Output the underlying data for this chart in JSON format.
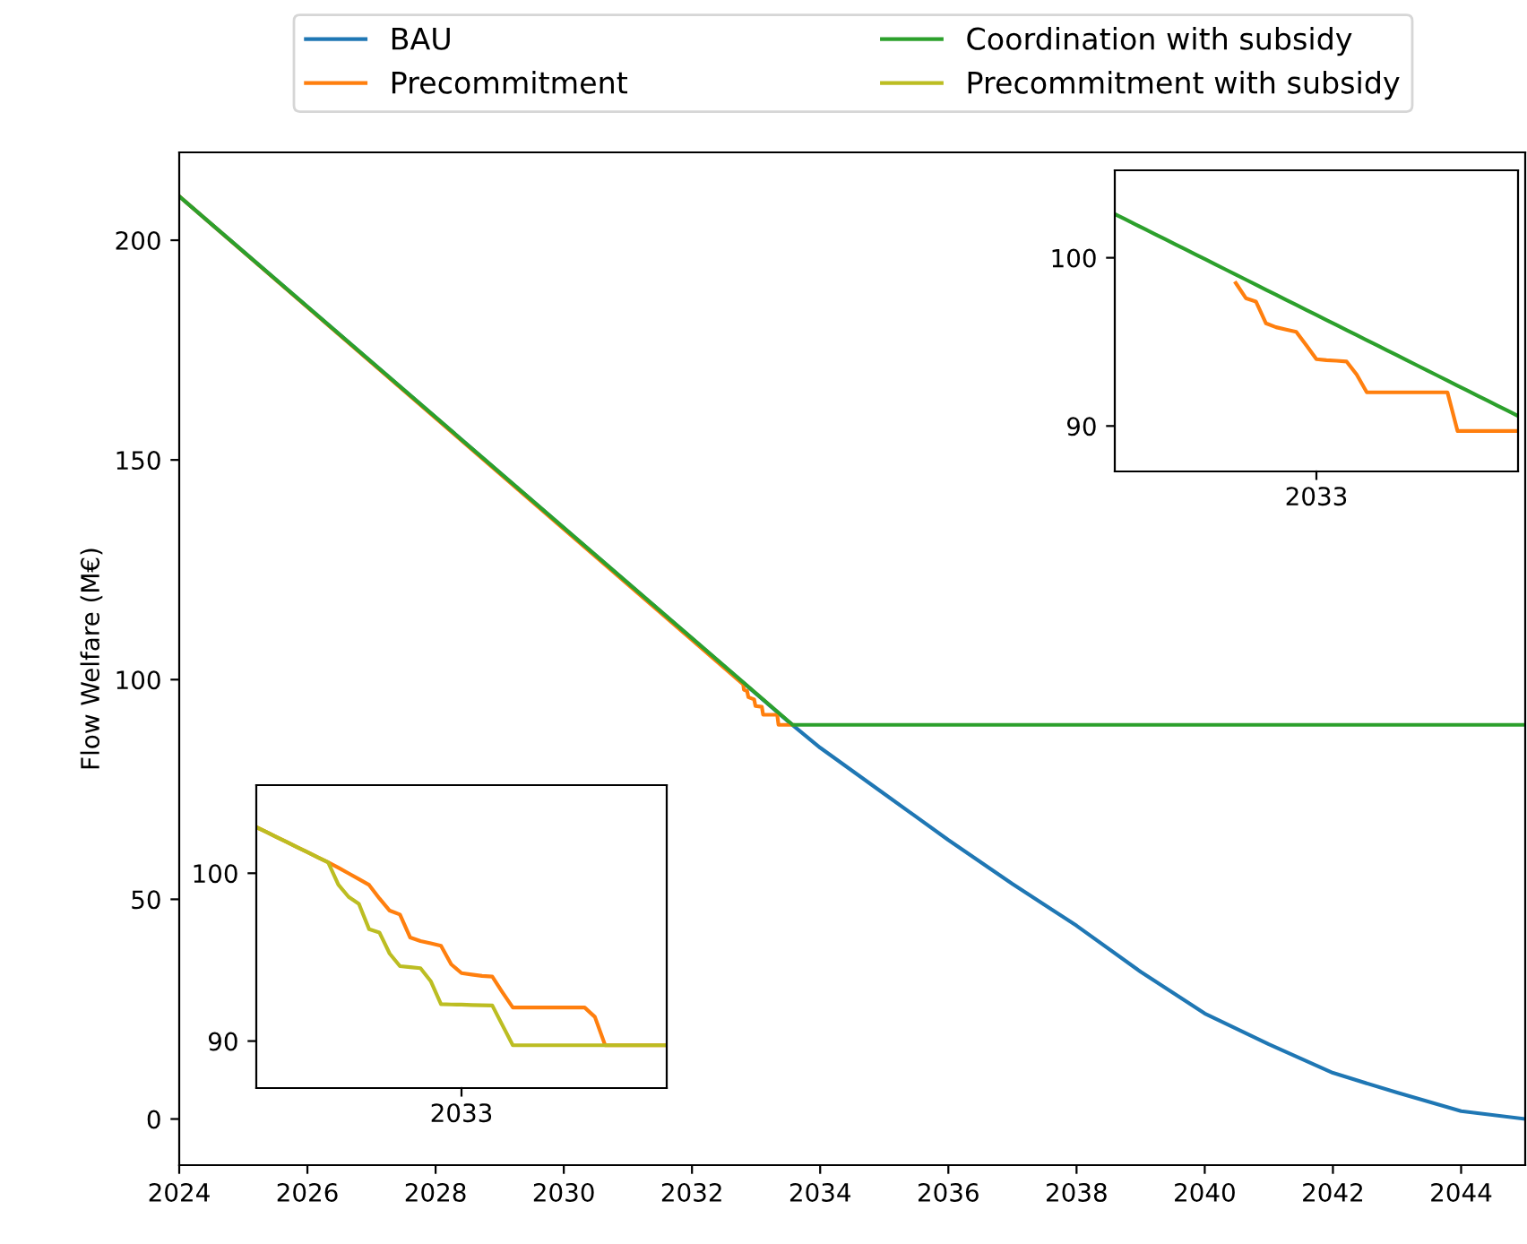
{
  "chart_data": [
    {
      "type": "line",
      "ylabel": "Flow Welfare (M€)",
      "xlim": [
        2024,
        2045
      ],
      "ylim": [
        -10.5,
        220
      ],
      "xticks": [
        2024,
        2026,
        2028,
        2030,
        2032,
        2034,
        2036,
        2038,
        2040,
        2042,
        2044
      ],
      "yticks": [
        0,
        50,
        100,
        150,
        200
      ],
      "grid": false,
      "legend": "top",
      "series": [
        {
          "name": "BAU",
          "color": "#1f77b4",
          "x": [
            2024,
            2033.5,
            2034,
            2035,
            2036,
            2037,
            2038,
            2039,
            2040,
            2041,
            2042,
            2043,
            2044,
            2045
          ],
          "values": [
            210,
            90.5,
            84.5,
            74,
            63.5,
            53.5,
            44,
            33.5,
            24,
            17,
            10.5,
            6,
            1.8,
            0
          ]
        },
        {
          "name": "Precommitment",
          "color": "#ff7f0e",
          "x": [
            2024,
            2032.8,
            2032.81,
            2032.86,
            2032.88,
            2032.97,
            2032.99,
            2033.09,
            2033.11,
            2033.33,
            2033.35,
            2033.57
          ],
          "values": [
            210,
            98.9,
            97.7,
            97.4,
            96.0,
            95.5,
            94.0,
            93.8,
            92.0,
            92.0,
            89.7,
            89.7
          ]
        },
        {
          "name": "Coordination with subsidy",
          "color": "#2ca02c",
          "x": [
            2024,
            2033.57,
            2045
          ],
          "values": [
            210,
            89.7,
            89.7
          ]
        }
      ]
    },
    {
      "type": "line",
      "ylim": [
        87.3,
        105.2
      ],
      "yticks": [
        90,
        100
      ],
      "grid": false,
      "annotations": [
        "2033"
      ],
      "categories": [
        null,
        null,
        null,
        null,
        null,
        null,
        null,
        null,
        null,
        null,
        null,
        null,
        null,
        null,
        null,
        null,
        null,
        null,
        null,
        null,
        null,
        null,
        null,
        null,
        null,
        null,
        null,
        null,
        null,
        null,
        null,
        null,
        null,
        null,
        null,
        null,
        null,
        null,
        null,
        null,
        null
      ],
      "series": [
        {
          "color": "#ff7f0e",
          "values": [
            null,
            null,
            null,
            null,
            null,
            null,
            null,
            null,
            null,
            null,
            null,
            null,
            98.5,
            97.6,
            97.4,
            96.1,
            95.87,
            95.73,
            95.6,
            94.8,
            93.97,
            93.91,
            93.88,
            93.83,
            93.05,
            92.0,
            92.0,
            92.0,
            92.0,
            92.0,
            92.0,
            92.0,
            92.0,
            92.0,
            89.7,
            89.7,
            89.7,
            89.7,
            89.7,
            89.7,
            89.7
          ]
        },
        {
          "color": "#2ca02c",
          "values": [
            102.6,
            102.3,
            102.0,
            101.7,
            101.4,
            101.1,
            100.8,
            100.5,
            100.2,
            99.9,
            99.6,
            99.3,
            99.0,
            98.7,
            98.4,
            98.1,
            97.8,
            97.5,
            97.2,
            96.9,
            96.6,
            96.3,
            96.0,
            95.7,
            95.4,
            95.1,
            94.8,
            94.5,
            94.2,
            93.9,
            93.6,
            93.3,
            93.0,
            92.7,
            92.4,
            92.1,
            91.8,
            91.5,
            91.2,
            90.9,
            90.6
          ]
        }
      ]
    },
    {
      "type": "line",
      "ylim": [
        87.2,
        105.25
      ],
      "yticks": [
        90,
        100
      ],
      "grid": false,
      "annotations": [
        "2033"
      ],
      "categories": [
        null,
        null,
        null,
        null,
        null,
        null,
        null,
        null,
        null,
        null,
        null,
        null,
        null,
        null,
        null,
        null,
        null,
        null,
        null,
        null,
        null,
        null,
        null,
        null,
        null,
        null,
        null,
        null,
        null,
        null,
        null,
        null,
        null,
        null,
        null,
        null,
        null,
        null,
        null,
        null,
        null
      ],
      "series": [
        {
          "color": "#ff7f0e",
          "values": [
            102.75,
            102.45,
            102.15,
            101.85,
            101.55,
            101.25,
            100.95,
            100.65,
            100.33,
            99.99,
            99.65,
            99.3,
            98.5,
            97.77,
            97.54,
            96.17,
            95.96,
            95.82,
            95.68,
            94.57,
            94.05,
            93.96,
            93.88,
            93.84,
            92.9,
            92.0,
            92.0,
            92.0,
            92.0,
            92.0,
            92.0,
            92.0,
            92.0,
            91.44,
            89.75,
            89.75,
            89.75,
            89.75,
            89.75,
            89.75,
            89.75
          ]
        },
        {
          "name": "Precommitment with subsidy",
          "color": "#bcbd22",
          "values": [
            102.75,
            102.45,
            102.15,
            101.85,
            101.55,
            101.25,
            100.95,
            100.65,
            99.32,
            98.59,
            98.17,
            96.66,
            96.47,
            95.21,
            94.46,
            94.4,
            94.34,
            93.57,
            92.2,
            92.18,
            92.17,
            92.15,
            92.13,
            92.12,
            90.93,
            89.75,
            89.75,
            89.75,
            89.75,
            89.75,
            89.75,
            89.75,
            89.75,
            89.75,
            89.75,
            89.75,
            89.75,
            89.75,
            89.75,
            89.75,
            89.75
          ]
        }
      ]
    }
  ]
}
